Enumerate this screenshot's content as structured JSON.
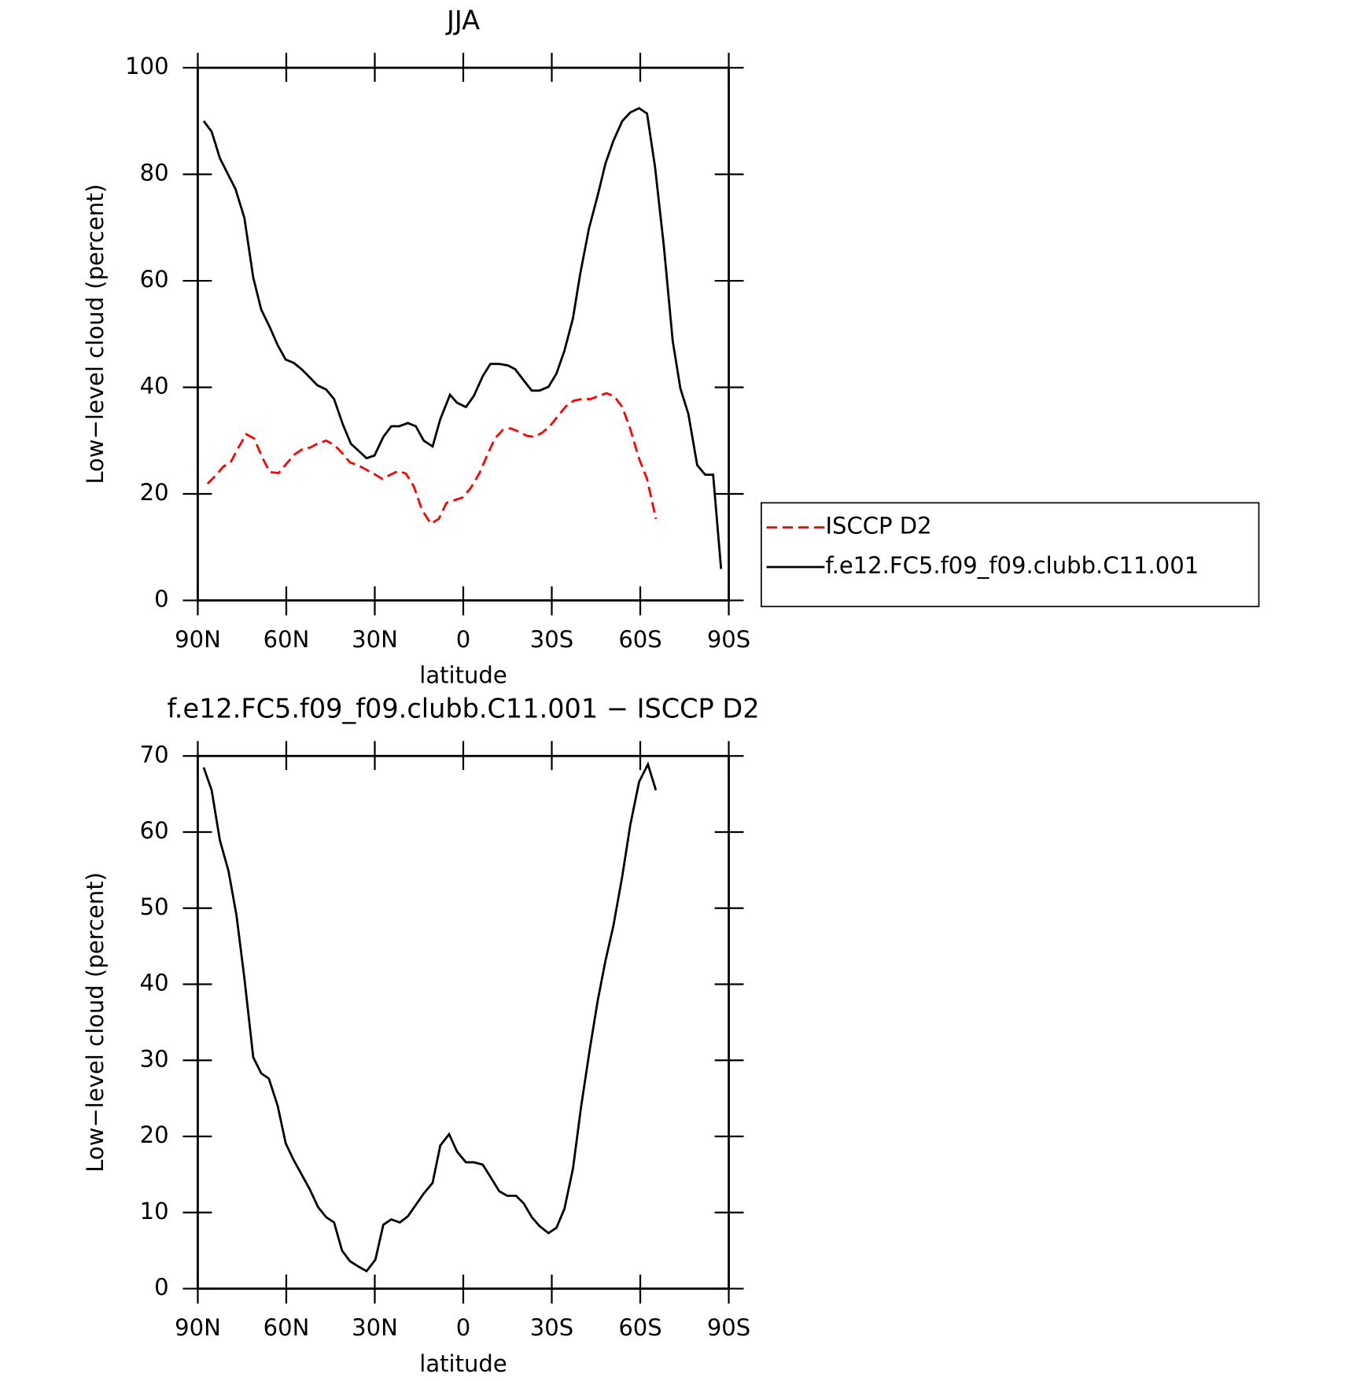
{
  "chart_data": [
    {
      "type": "line",
      "title": "JJA",
      "xlabel": "latitude",
      "ylabel": "Low−level cloud (percent)",
      "xlim": [
        90,
        -90
      ],
      "xticks": [
        {
          "value": 90,
          "label": "90N"
        },
        {
          "value": 60,
          "label": "60N"
        },
        {
          "value": 30,
          "label": "30N"
        },
        0,
        {
          "value": -30,
          "label": "30S"
        },
        {
          "value": -60,
          "label": "60S"
        },
        {
          "value": -90,
          "label": "90S"
        }
      ],
      "ylim": [
        0,
        100
      ],
      "yticks": [
        0,
        20,
        40,
        60,
        80,
        100
      ],
      "legend": "right",
      "series": [
        {
          "name": "ISCCP D2",
          "color": "#ff0000",
          "linestyle": "dashed",
          "x": [
            86.7,
            84.0,
            81.4,
            78.7,
            76.0,
            73.6,
            70.9,
            68.2,
            65.6,
            62.6,
            59.9,
            57.2,
            54.5,
            51.9,
            49.2,
            46.5,
            43.8,
            41.1,
            38.4,
            35.8,
            33.1,
            30.4,
            27.4,
            24.7,
            22.1,
            19.4,
            16.7,
            14.0,
            11.0,
            8.3,
            5.7,
            3.0,
            0.3,
            -2.4,
            -5.4,
            -8.0,
            -10.7,
            -13.4,
            -16.1,
            -18.8,
            -21.5,
            -24.1,
            -26.8,
            -29.5,
            -32.2,
            -34.9,
            -37.5,
            -40.2,
            -43.2,
            -45.9,
            -48.6,
            -51.2,
            -53.9,
            -56.6,
            -59.6,
            -62.3,
            -65.3
          ],
          "values": [
            21.9,
            23.4,
            25.1,
            26.1,
            28.9,
            31.2,
            30.4,
            26.9,
            24.1,
            23.9,
            25.7,
            27.4,
            28.4,
            28.7,
            29.5,
            30.0,
            29.2,
            27.7,
            25.9,
            25.4,
            24.6,
            23.8,
            22.8,
            23.6,
            24.3,
            23.8,
            21.3,
            17.0,
            14.4,
            15.3,
            18.3,
            18.8,
            19.3,
            21.0,
            23.8,
            27.1,
            30.4,
            32.0,
            32.3,
            31.7,
            30.9,
            30.7,
            31.5,
            32.8,
            34.7,
            36.5,
            37.5,
            37.8,
            37.8,
            38.4,
            38.9,
            38.3,
            36.3,
            32.2,
            26.6,
            22.8,
            15.3
          ]
        },
        {
          "name": "f.e12.FC5.f09_f09.clubb.C11.001",
          "color": "#000000",
          "linestyle": "solid",
          "x": [
            88.0,
            85.3,
            82.5,
            77.2,
            74.2,
            71.2,
            68.5,
            65.6,
            62.9,
            60.2,
            57.5,
            54.8,
            52.1,
            49.5,
            46.5,
            43.8,
            40.8,
            38.1,
            35.5,
            32.8,
            30.1,
            27.1,
            24.4,
            21.7,
            18.8,
            16.1,
            13.4,
            10.4,
            7.8,
            4.5,
            2.1,
            -0.9,
            -3.6,
            -6.6,
            -9.2,
            -12.2,
            -15.2,
            -17.6,
            -20.5,
            -23.2,
            -25.9,
            -28.9,
            -31.6,
            -34.3,
            -37.2,
            -39.6,
            -42.6,
            -45.6,
            -48.2,
            -50.9,
            -53.9,
            -56.6,
            -59.6,
            -62.3,
            -65.0,
            -68.0,
            -71.0,
            -73.6,
            -76.3,
            -79.3,
            -82.0,
            -84.7,
            -87.4
          ],
          "values": [
            90.0,
            88.0,
            83.0,
            77.2,
            71.8,
            60.6,
            54.6,
            51.3,
            47.9,
            45.2,
            44.6,
            43.4,
            41.9,
            40.4,
            39.6,
            37.8,
            33.0,
            29.4,
            28.1,
            26.7,
            27.2,
            30.7,
            32.7,
            32.7,
            33.3,
            32.7,
            30.0,
            28.9,
            34.0,
            38.6,
            37.1,
            36.3,
            38.4,
            42.1,
            44.4,
            44.4,
            44.1,
            43.4,
            41.3,
            39.4,
            39.4,
            40.1,
            42.6,
            46.9,
            53.0,
            61.2,
            69.8,
            76.1,
            82.0,
            86.3,
            90.0,
            91.6,
            92.4,
            91.4,
            81.4,
            66.5,
            48.7,
            39.8,
            35.0,
            25.4,
            23.6,
            23.6,
            5.9
          ]
        }
      ]
    },
    {
      "type": "line",
      "title": "f.e12.FC5.f09_f09.clubb.C11.001 − ISCCP D2",
      "xlabel": "latitude",
      "ylabel": "Low−level cloud (percent)",
      "xlim": [
        90,
        -90
      ],
      "xticks": [
        {
          "value": 90,
          "label": "90N"
        },
        {
          "value": 60,
          "label": "60N"
        },
        {
          "value": 30,
          "label": "30N"
        },
        0,
        {
          "value": -30,
          "label": "30S"
        },
        {
          "value": -60,
          "label": "60S"
        },
        {
          "value": -90,
          "label": "90S"
        }
      ],
      "ylim": [
        0,
        70
      ],
      "yticks": [
        0,
        10,
        20,
        30,
        40,
        50,
        60,
        70
      ],
      "series": [
        {
          "color": "#000000",
          "linestyle": "solid",
          "x": [
            88.0,
            85.3,
            82.5,
            79.6,
            76.9,
            74.2,
            71.2,
            68.5,
            65.9,
            62.9,
            60.2,
            57.5,
            54.8,
            52.1,
            49.2,
            46.5,
            43.8,
            41.1,
            38.4,
            35.5,
            32.8,
            29.8,
            27.1,
            24.4,
            21.5,
            18.8,
            16.1,
            13.4,
            10.4,
            7.8,
            4.8,
            2.1,
            -0.9,
            -3.6,
            -6.6,
            -9.2,
            -12.2,
            -14.9,
            -17.9,
            -20.5,
            -23.2,
            -25.9,
            -28.9,
            -31.6,
            -34.3,
            -37.2,
            -39.9,
            -42.9,
            -45.6,
            -48.2,
            -50.9,
            -53.9,
            -56.6,
            -59.6,
            -62.6,
            -65.3
          ],
          "values": [
            68.5,
            65.5,
            58.9,
            54.9,
            49.1,
            40.8,
            30.4,
            28.3,
            27.6,
            24.0,
            19.1,
            16.9,
            15.0,
            13.1,
            10.7,
            9.4,
            8.7,
            5.0,
            3.6,
            2.9,
            2.3,
            3.8,
            8.4,
            9.1,
            8.7,
            9.5,
            11.0,
            12.5,
            13.9,
            18.8,
            20.3,
            18.0,
            16.6,
            16.6,
            16.3,
            14.7,
            12.8,
            12.2,
            12.2,
            11.2,
            9.4,
            8.2,
            7.3,
            8.0,
            10.5,
            15.8,
            23.8,
            31.5,
            37.9,
            43.1,
            47.7,
            54.2,
            60.9,
            66.6,
            68.9,
            65.5
          ]
        }
      ]
    }
  ]
}
